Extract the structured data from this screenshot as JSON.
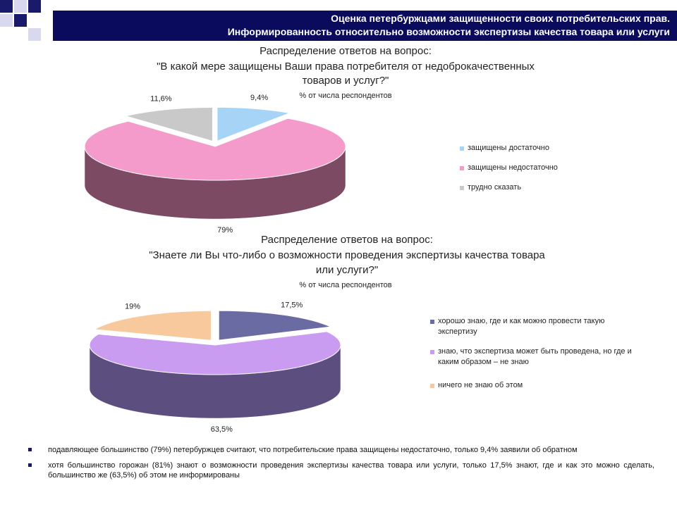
{
  "header": {
    "lines": [
      "Оценка петербуржцами защищенности своих потребительских прав.",
      "Информированность относительно возможности экспертизы качества товара или услуги"
    ]
  },
  "chart_data": [
    {
      "type": "pie",
      "title": [
        "Распределение ответов на вопрос:",
        "\"В какой мере защищены Ваши права потребителя от недоброкачественных",
        "товаров и услуг?\""
      ],
      "subtitle": "% от числа респондентов",
      "categories": [
        "защищены достаточно",
        "защищены недостаточно",
        "трудно сказать"
      ],
      "values": [
        9.4,
        79,
        11.6
      ],
      "value_labels": [
        "9,4%",
        "79%",
        "11,6%"
      ],
      "colors": [
        "#a6d4f7",
        "#f49bcb",
        "#c9c9c9"
      ],
      "side_colors": [
        "#6f8aa0",
        "#7c4a63",
        "#8a8a8a"
      ]
    },
    {
      "type": "pie",
      "title": [
        "Распределение ответов на вопрос:",
        "\"Знаете ли Вы что-либо о возможности проведения экспертизы качества товара",
        "или услуги?\""
      ],
      "subtitle": "% от числа респондентов",
      "categories": [
        "хорошо знаю, где и как можно провести такую экспертизу",
        "знаю, что экспертиза может быть проведена, но где и каким образом – не знаю",
        "ничего не знаю об этом"
      ],
      "values": [
        17.5,
        63.5,
        19
      ],
      "value_labels": [
        "17,5%",
        "63,5%",
        "19%"
      ],
      "colors": [
        "#6b6ba3",
        "#c99cf2",
        "#f8c99c"
      ],
      "side_colors": [
        "#3e3e66",
        "#5c4f80",
        "#a8876a"
      ]
    }
  ],
  "bullets": [
    "подавляющее большинство (79%) петербуржцев считают, что потребительские права защищены недостаточно, только 9,4% заявили об обратном",
    "хотя большинство горожан (81%) знают о возможности проведения экспертизы качества товара или услуги, только 17,5% знают, где и как это можно сделать, большинство же (63,5%) об этом не информированы"
  ]
}
